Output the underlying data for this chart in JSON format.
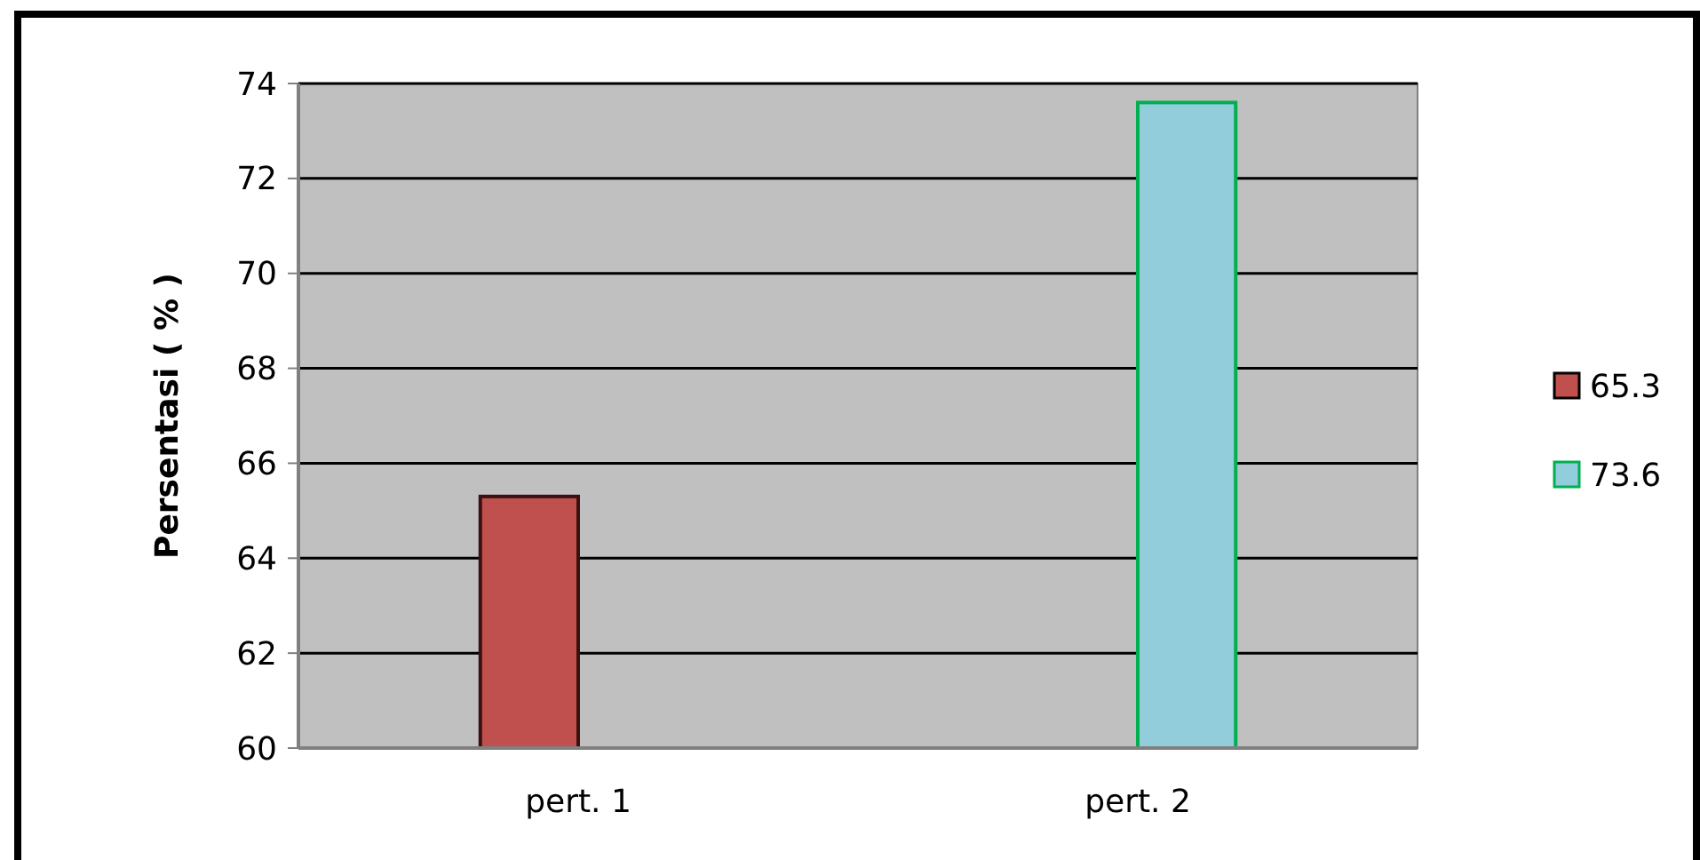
{
  "chart_data": {
    "type": "bar",
    "ylabel": "Persentasi ( % )",
    "categories": [
      "pert. 1",
      "pert. 2"
    ],
    "series": [
      {
        "name": "65.3",
        "color": "#c0504d",
        "values": [
          65.3,
          null
        ]
      },
      {
        "name": "73.6",
        "color": "#92cddc",
        "values": [
          null,
          73.6
        ]
      }
    ],
    "ylim": [
      60,
      74
    ],
    "yticks": [
      60,
      62,
      64,
      66,
      68,
      70,
      72,
      74
    ],
    "grid": "y",
    "legend": "right"
  }
}
